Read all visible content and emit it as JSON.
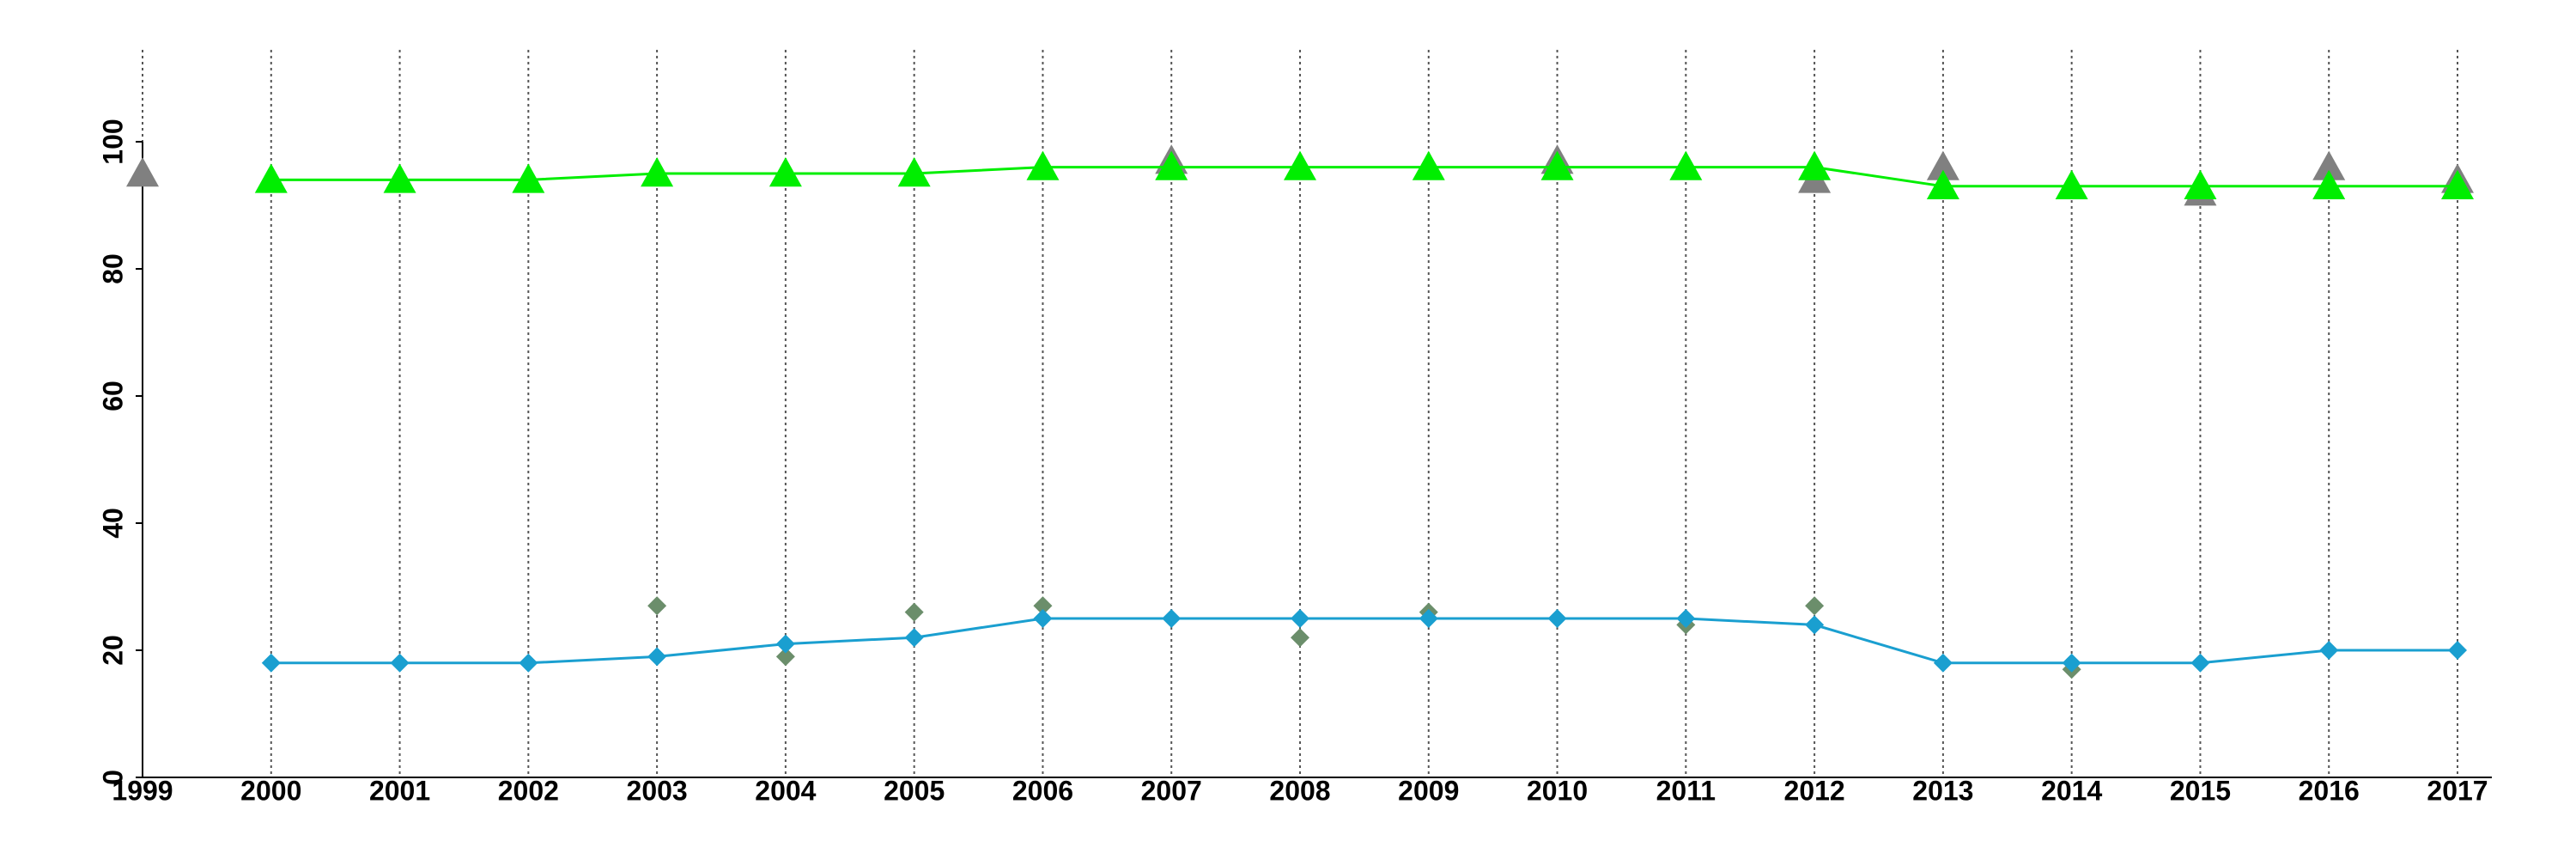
{
  "chart_data": {
    "type": "line",
    "xlim": [
      1999,
      2017
    ],
    "xticks": [
      1999,
      2000,
      2001,
      2002,
      2003,
      2004,
      2005,
      2006,
      2007,
      2008,
      2009,
      2010,
      2011,
      2012,
      2013,
      2014,
      2015,
      2016,
      2017
    ],
    "ylim": [
      0,
      100
    ],
    "yticks": [
      0,
      20,
      40,
      60,
      80,
      100
    ],
    "grid": "x",
    "series": [
      {
        "color": "#808080",
        "marker": "triangle",
        "line": false,
        "x": [
          1999,
          2007,
          2010,
          2012,
          2013,
          2015,
          2016,
          2017
        ],
        "values": [
          95,
          97,
          97,
          94,
          96,
          92,
          96,
          94
        ]
      },
      {
        "color": "#00ee00",
        "marker": "triangle",
        "line": true,
        "x": [
          2000,
          2001,
          2002,
          2003,
          2004,
          2005,
          2006,
          2007,
          2008,
          2009,
          2010,
          2011,
          2012,
          2013,
          2014,
          2015,
          2016,
          2017
        ],
        "values": [
          94,
          94,
          94,
          95,
          95,
          95,
          96,
          96,
          96,
          96,
          96,
          96,
          96,
          93,
          93,
          93,
          93,
          93
        ]
      },
      {
        "color": "#6b8e6b",
        "marker": "diamond",
        "line": false,
        "x": [
          2003,
          2004,
          2005,
          2006,
          2008,
          2009,
          2011,
          2012,
          2014
        ],
        "values": [
          27,
          19,
          26,
          27,
          22,
          26,
          24,
          27,
          17
        ]
      },
      {
        "color": "#1a9fd0",
        "marker": "diamond",
        "line": true,
        "x": [
          2000,
          2001,
          2002,
          2003,
          2004,
          2005,
          2006,
          2007,
          2008,
          2009,
          2010,
          2011,
          2012,
          2013,
          2014,
          2015,
          2016,
          2017
        ],
        "values": [
          18,
          18,
          18,
          19,
          21,
          22,
          25,
          25,
          25,
          25,
          25,
          25,
          24,
          18,
          18,
          18,
          20,
          20
        ]
      }
    ]
  }
}
